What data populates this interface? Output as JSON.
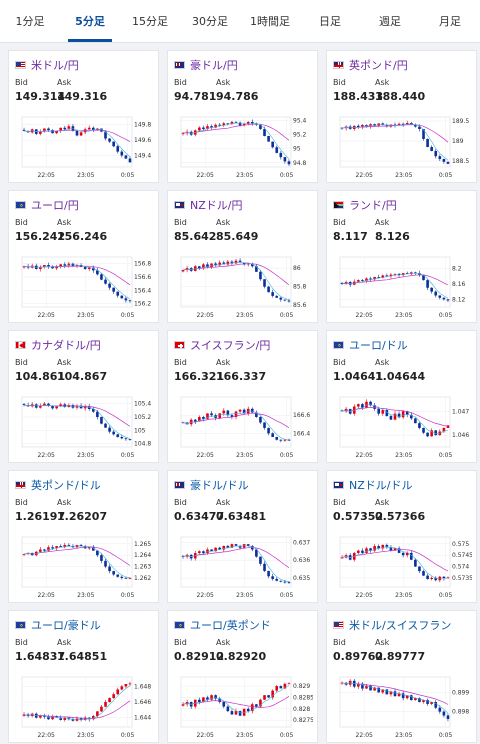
{
  "tabs": [
    {
      "label": "1分足",
      "active": false
    },
    {
      "label": "5分足",
      "active": true
    },
    {
      "label": "15分足",
      "active": false
    },
    {
      "label": "30分足",
      "active": false
    },
    {
      "label": "1時間足",
      "active": false
    },
    {
      "label": "日足",
      "active": false
    },
    {
      "label": "週足",
      "active": false
    },
    {
      "label": "月足",
      "active": false
    }
  ],
  "cards": [
    {
      "pair": "米ドル/円",
      "flag": "us",
      "style": "purple",
      "bid_label": "Bid",
      "ask_label": "Ask",
      "bid": "149.314",
      "ask": "149.316",
      "chart_data": {
        "type": "candlestick",
        "x_ticks": [
          "22:05",
          "23:05",
          "0:05"
        ],
        "y_ticks": [
          "149.8",
          "149.6",
          "149.4"
        ],
        "y_range": [
          149.25,
          149.9
        ],
        "close": [
          149.72,
          149.7,
          149.74,
          149.68,
          149.71,
          149.75,
          149.73,
          149.69,
          149.72,
          149.76,
          149.74,
          149.78,
          149.72,
          149.66,
          149.7,
          149.74,
          149.76,
          149.73,
          149.75,
          149.71,
          149.62,
          149.58,
          149.52,
          149.45,
          149.4,
          149.36,
          149.31
        ]
      }
    },
    {
      "pair": "豪ドル/円",
      "flag": "au",
      "style": "purple",
      "bid_label": "Bid",
      "ask_label": "Ask",
      "bid": "94.781",
      "ask": "94.786",
      "chart_data": {
        "type": "candlestick",
        "x_ticks": [
          "22:05",
          "23:05",
          "0:05"
        ],
        "y_ticks": [
          "95.4",
          "95.2",
          "95",
          "94.8"
        ],
        "y_range": [
          94.74,
          95.45
        ],
        "close": [
          95.22,
          95.24,
          95.2,
          95.26,
          95.3,
          95.28,
          95.32,
          95.3,
          95.34,
          95.33,
          95.36,
          95.35,
          95.38,
          95.37,
          95.33,
          95.35,
          95.38,
          95.36,
          95.34,
          95.28,
          95.18,
          95.1,
          95.02,
          94.94,
          94.88,
          94.82,
          94.78
        ]
      }
    },
    {
      "pair": "英ポンド/円",
      "flag": "gb",
      "style": "purple",
      "bid_label": "Bid",
      "ask_label": "Ask",
      "bid": "188.433",
      "ask": "188.440",
      "chart_data": {
        "type": "candlestick",
        "x_ticks": [
          "22:05",
          "23:05",
          "0:05"
        ],
        "y_ticks": [
          "189.5",
          "189",
          "188.5"
        ],
        "y_range": [
          188.35,
          189.6
        ],
        "close": [
          189.32,
          189.36,
          189.3,
          189.38,
          189.34,
          189.4,
          189.37,
          189.42,
          189.38,
          189.44,
          189.4,
          189.36,
          189.41,
          189.39,
          189.43,
          189.4,
          189.45,
          189.41,
          189.36,
          189.3,
          189.05,
          188.85,
          188.75,
          188.62,
          188.55,
          188.48,
          188.43
        ]
      }
    },
    {
      "pair": "ユーロ/円",
      "flag": "eu",
      "style": "purple",
      "bid_label": "Bid",
      "ask_label": "Ask",
      "bid": "156.242",
      "ask": "156.246",
      "chart_data": {
        "type": "candlestick",
        "x_ticks": [
          "22:05",
          "23:05",
          "0:05"
        ],
        "y_ticks": [
          "156.8",
          "156.6",
          "156.4",
          "156.2"
        ],
        "y_range": [
          156.15,
          156.9
        ],
        "close": [
          156.76,
          156.74,
          156.77,
          156.72,
          156.75,
          156.78,
          156.76,
          156.73,
          156.76,
          156.79,
          156.77,
          156.8,
          156.76,
          156.78,
          156.75,
          156.72,
          156.74,
          156.7,
          156.64,
          156.56,
          156.5,
          156.44,
          156.38,
          156.32,
          156.28,
          156.25,
          156.24
        ]
      }
    },
    {
      "pair": "NZドル/円",
      "flag": "nz",
      "style": "purple",
      "bid_label": "Bid",
      "ask_label": "Ask",
      "bid": "85.642",
      "ask": "85.649",
      "chart_data": {
        "type": "candlestick",
        "x_ticks": [
          "22:05",
          "23:05",
          "0:05"
        ],
        "y_ticks": [
          "86",
          "85.8",
          "85.6"
        ],
        "y_range": [
          85.58,
          86.12
        ],
        "close": [
          85.98,
          86.0,
          85.97,
          86.02,
          86.0,
          86.04,
          86.01,
          86.05,
          86.03,
          86.06,
          86.04,
          86.07,
          86.05,
          86.08,
          86.06,
          86.04,
          86.05,
          86.02,
          85.96,
          85.88,
          85.8,
          85.74,
          85.7,
          85.68,
          85.66,
          85.65,
          85.64
        ]
      }
    },
    {
      "pair": "ランド/円",
      "flag": "za",
      "style": "purple",
      "bid_label": "Bid",
      "ask_label": "Ask",
      "bid": "8.117",
      "ask": "8.126",
      "chart_data": {
        "type": "candlestick",
        "x_ticks": [
          "22:05",
          "23:05",
          "0:05"
        ],
        "y_ticks": [
          "8.2",
          "8.16",
          "8.12"
        ],
        "y_range": [
          8.1,
          8.23
        ],
        "close": [
          8.16,
          8.165,
          8.158,
          8.166,
          8.17,
          8.168,
          8.174,
          8.172,
          8.178,
          8.176,
          8.182,
          8.18,
          8.184,
          8.186,
          8.183,
          8.188,
          8.186,
          8.19,
          8.188,
          8.184,
          8.17,
          8.15,
          8.14,
          8.13,
          8.124,
          8.12,
          8.117
        ]
      }
    },
    {
      "pair": "カナダドル/円",
      "flag": "ca",
      "style": "purple",
      "bid_label": "Bid",
      "ask_label": "Ask",
      "bid": "104.861",
      "ask": "104.867",
      "chart_data": {
        "type": "candlestick",
        "x_ticks": [
          "22:05",
          "23:05",
          "0:05"
        ],
        "y_ticks": [
          "105.4",
          "105.2",
          "105",
          "104.8"
        ],
        "y_range": [
          104.75,
          105.5
        ],
        "close": [
          105.38,
          105.36,
          105.39,
          105.34,
          105.37,
          105.4,
          105.37,
          105.33,
          105.36,
          105.39,
          105.35,
          105.38,
          105.34,
          105.37,
          105.33,
          105.36,
          105.32,
          105.28,
          105.2,
          105.1,
          105.04,
          104.98,
          104.94,
          104.9,
          104.88,
          104.87,
          104.86
        ]
      }
    },
    {
      "pair": "スイスフラン/円",
      "flag": "ch",
      "style": "purple",
      "bid_label": "Bid",
      "ask_label": "Ask",
      "bid": "166.321",
      "ask": "166.337",
      "chart_data": {
        "type": "candlestick",
        "x_ticks": [
          "22:05",
          "23:05",
          "0:05"
        ],
        "y_ticks": [
          "166.6",
          "166.4"
        ],
        "y_range": [
          166.25,
          166.8
        ],
        "close": [
          166.52,
          166.5,
          166.55,
          166.53,
          166.58,
          166.56,
          166.62,
          166.6,
          166.57,
          166.62,
          166.65,
          166.6,
          166.58,
          166.64,
          166.66,
          166.62,
          166.67,
          166.63,
          166.58,
          166.52,
          166.46,
          166.4,
          166.36,
          166.33,
          166.32,
          166.33,
          166.32
        ]
      }
    },
    {
      "pair": "ユーロ/ドル",
      "flag": "euus",
      "style": "blue",
      "bid_label": "Bid",
      "ask_label": "Ask",
      "bid": "1.04641",
      "ask": "1.04644",
      "chart_data": {
        "type": "candlestick",
        "x_ticks": [
          "22:05",
          "23:05",
          "0:05"
        ],
        "y_ticks": [
          "1.047",
          "1.046"
        ],
        "y_range": [
          1.0455,
          1.0476
        ],
        "close": [
          1.047,
          1.0471,
          1.0469,
          1.0472,
          1.0473,
          1.04715,
          1.0474,
          1.04725,
          1.0471,
          1.0469,
          1.04705,
          1.0468,
          1.04665,
          1.0469,
          1.04675,
          1.047,
          1.04685,
          1.0467,
          1.0465,
          1.0463,
          1.0461,
          1.04595,
          1.0462,
          1.046,
          1.04615,
          1.0463,
          1.04641
        ]
      }
    },
    {
      "pair": "英ポンド/ドル",
      "flag": "gbus",
      "style": "blue",
      "bid_label": "Bid",
      "ask_label": "Ask",
      "bid": "1.26197",
      "ask": "1.26207",
      "chart_data": {
        "type": "candlestick",
        "x_ticks": [
          "22:05",
          "23:05",
          "0:05"
        ],
        "y_ticks": [
          "1.265",
          "1.264",
          "1.263",
          "1.262"
        ],
        "y_range": [
          1.2612,
          1.2656
        ],
        "close": [
          1.2641,
          1.2642,
          1.264,
          1.2643,
          1.2645,
          1.2644,
          1.2647,
          1.2646,
          1.2648,
          1.2647,
          1.2649,
          1.2648,
          1.2647,
          1.2649,
          1.2648,
          1.2646,
          1.2647,
          1.2644,
          1.264,
          1.2635,
          1.263,
          1.2626,
          1.2623,
          1.2621,
          1.262,
          1.26195,
          1.26197
        ]
      }
    },
    {
      "pair": "豪ドル/ドル",
      "flag": "auus",
      "style": "blue",
      "bid_label": "Bid",
      "ask_label": "Ask",
      "bid": "0.63477",
      "ask": "0.63481",
      "chart_data": {
        "type": "candlestick",
        "x_ticks": [
          "22:05",
          "23:05",
          "0:05"
        ],
        "y_ticks": [
          "0.637",
          "0.636",
          "0.635"
        ],
        "y_range": [
          0.6345,
          0.6373
        ],
        "close": [
          0.6362,
          0.6363,
          0.6361,
          0.6364,
          0.6365,
          0.6364,
          0.6366,
          0.6365,
          0.6367,
          0.6366,
          0.6368,
          0.6367,
          0.6369,
          0.6368,
          0.6367,
          0.6369,
          0.6368,
          0.6366,
          0.6362,
          0.6358,
          0.6354,
          0.6351,
          0.63495,
          0.63485,
          0.6348,
          0.63478,
          0.63477
        ]
      }
    },
    {
      "pair": "NZドル/ドル",
      "flag": "nzus",
      "style": "blue",
      "bid_label": "Bid",
      "ask_label": "Ask",
      "bid": "0.57352",
      "ask": "0.57366",
      "chart_data": {
        "type": "candlestick",
        "x_ticks": [
          "22:05",
          "23:05",
          "0:05"
        ],
        "y_ticks": [
          "0.575",
          "0.5745",
          "0.574",
          "0.5735"
        ],
        "y_range": [
          0.5731,
          0.5753
        ],
        "close": [
          0.5744,
          0.5745,
          0.5743,
          0.5746,
          0.5747,
          0.5746,
          0.5748,
          0.5747,
          0.5749,
          0.5748,
          0.57495,
          0.57485,
          0.5747,
          0.5748,
          0.5746,
          0.5745,
          0.5746,
          0.5743,
          0.574,
          0.5738,
          0.5736,
          0.57345,
          0.5735,
          0.5734,
          0.57355,
          0.57348,
          0.57352
        ]
      }
    },
    {
      "pair": "ユーロ/豪ドル",
      "flag": "euau",
      "style": "blue",
      "bid_label": "Bid",
      "ask_label": "Ask",
      "bid": "1.64837",
      "ask": "1.64851",
      "chart_data": {
        "type": "candlestick",
        "x_ticks": [
          "22:05",
          "23:05",
          "0:05"
        ],
        "y_ticks": [
          "1.648",
          "1.646",
          "1.644"
        ],
        "y_range": [
          1.6428,
          1.6492
        ],
        "close": [
          1.6444,
          1.6442,
          1.6445,
          1.644,
          1.6443,
          1.6441,
          1.6438,
          1.6442,
          1.644,
          1.6437,
          1.644,
          1.6438,
          1.6436,
          1.6439,
          1.6437,
          1.644,
          1.6438,
          1.6442,
          1.6448,
          1.6454,
          1.646,
          1.6465,
          1.647,
          1.6476,
          1.648,
          1.6483,
          1.64837
        ]
      }
    },
    {
      "pair": "ユーロ/英ポンド",
      "flag": "eugb",
      "style": "blue",
      "bid_label": "Bid",
      "ask_label": "Ask",
      "bid": "0.82912",
      "ask": "0.82920",
      "chart_data": {
        "type": "candlestick",
        "x_ticks": [
          "22:05",
          "23:05",
          "0:05"
        ],
        "y_ticks": [
          "0.829",
          "0.8285",
          "0.828",
          "0.8275"
        ],
        "y_range": [
          0.8272,
          0.8294
        ],
        "close": [
          0.8282,
          0.8283,
          0.8281,
          0.8284,
          0.8283,
          0.8285,
          0.8284,
          0.8286,
          0.82845,
          0.8283,
          0.8281,
          0.8279,
          0.82775,
          0.8279,
          0.8277,
          0.828,
          0.8279,
          0.8282,
          0.8281,
          0.8284,
          0.8286,
          0.8285,
          0.8288,
          0.829,
          0.8289,
          0.8291,
          0.82912
        ]
      }
    },
    {
      "pair": "米ドル/スイスフラン",
      "flag": "usch",
      "style": "blue",
      "bid_label": "Bid",
      "ask_label": "Ask",
      "bid": "0.89762",
      "ask": "0.89777",
      "chart_data": {
        "type": "candlestick",
        "x_ticks": [
          "22:05",
          "23:05",
          "0:05"
        ],
        "y_ticks": [
          "0.899",
          "0.898"
        ],
        "y_range": [
          0.8972,
          0.8998
        ],
        "close": [
          0.8995,
          0.8994,
          0.8996,
          0.8993,
          0.89945,
          0.8992,
          0.89935,
          0.8991,
          0.89925,
          0.899,
          0.89915,
          0.8989,
          0.89905,
          0.8988,
          0.89895,
          0.8987,
          0.89885,
          0.8986,
          0.8987,
          0.8985,
          0.8986,
          0.8984,
          0.8985,
          0.8982,
          0.898,
          0.8978,
          0.89762
        ]
      }
    }
  ],
  "colors": {
    "up": "#e60012",
    "down": "#0b2f9c",
    "ma": "#c733c9",
    "purple_title": "#6c2aa1",
    "blue_title": "#0b58a6",
    "active_tab": "#0b4f9c"
  }
}
